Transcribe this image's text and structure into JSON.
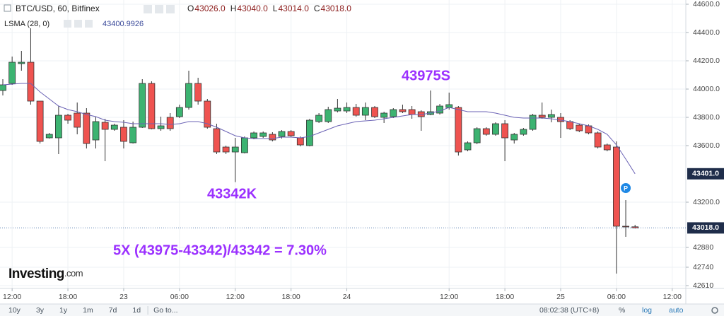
{
  "chart_data": {
    "type": "candlestick",
    "title": "BTC/USD, 60, Bitfinex",
    "header": {
      "ohlc": [
        {
          "label": "O",
          "value": "43026.0"
        },
        {
          "label": "H",
          "value": "43040.0"
        },
        {
          "label": "L",
          "value": "43014.0"
        },
        {
          "label": "C",
          "value": "43018.0"
        }
      ],
      "lsma_value": "43400.9926"
    },
    "categories": [
      null,
      "12:00",
      null,
      null,
      null,
      null,
      null,
      "18:00",
      null,
      null,
      null,
      null,
      null,
      "23",
      null,
      null,
      null,
      null,
      null,
      "06:00",
      null,
      null,
      null,
      null,
      null,
      "12:00",
      null,
      null,
      null,
      null,
      null,
      "18:00",
      null,
      null,
      null,
      null,
      null,
      "24",
      null,
      null,
      null,
      null,
      null,
      null,
      null,
      null,
      null,
      null,
      "12:00",
      null,
      null,
      null,
      null,
      null,
      "18:00",
      null,
      null,
      null,
      null,
      null,
      "25",
      null,
      null,
      null,
      null,
      null,
      "06:00",
      null,
      null,
      null,
      null,
      null,
      "12:00"
    ],
    "open": [
      43990,
      44040,
      44180,
      44190,
      43915,
      43655,
      43655,
      43815,
      43830,
      43830,
      43640,
      43765,
      43715,
      43730,
      43620,
      43730,
      44040,
      43720,
      43800,
      43805,
      43870,
      44040,
      43915,
      43720,
      43590,
      43555,
      43550,
      43655,
      43665,
      43680,
      43665,
      43700,
      43655,
      43600,
      43770,
      43770,
      43845,
      43845,
      43870,
      43815,
      43870,
      43800,
      43805,
      43855,
      43855,
      43840,
      43820,
      43830,
      43870,
      43870,
      43570,
      43620,
      43720,
      43680,
      43755,
      43640,
      43680,
      43715,
      43815,
      43800,
      43800,
      43770,
      43745,
      43740,
      43690,
      43605,
      43590,
      43030,
      43026,
      null,
      null,
      null,
      null
    ],
    "high": [
      44070,
      44230,
      44270,
      44430,
      43915,
      43690,
      43880,
      43825,
      43905,
      43865,
      43805,
      43790,
      43755,
      43780,
      43770,
      44070,
      44055,
      43805,
      43830,
      43890,
      44130,
      44080,
      43930,
      43755,
      43600,
      43655,
      43665,
      43700,
      43700,
      43695,
      43710,
      43710,
      43665,
      43790,
      43830,
      43875,
      43930,
      43905,
      43895,
      43905,
      43880,
      43840,
      43865,
      43890,
      43880,
      43850,
      43990,
      43895,
      43975,
      43880,
      43630,
      43730,
      43730,
      43765,
      43780,
      43690,
      43725,
      43825,
      43905,
      43855,
      43830,
      43780,
      43755,
      43750,
      43700,
      43615,
      43630,
      43215,
      43040,
      null,
      null,
      null,
      null
    ],
    "low": [
      43955,
      44030,
      44130,
      43890,
      43615,
      43650,
      43540,
      43755,
      43680,
      43580,
      43580,
      43490,
      43705,
      43580,
      43615,
      43725,
      43715,
      43705,
      43705,
      43795,
      43855,
      43890,
      43720,
      43540,
      43540,
      43342,
      43545,
      43645,
      43655,
      43630,
      43650,
      43660,
      43595,
      43595,
      43760,
      43760,
      43835,
      43830,
      43805,
      43780,
      43795,
      43760,
      43795,
      43830,
      43790,
      43705,
      43815,
      43820,
      43855,
      43530,
      43560,
      43610,
      43670,
      43670,
      43490,
      43615,
      43670,
      43705,
      43790,
      43765,
      43655,
      43710,
      43695,
      43680,
      43580,
      43560,
      42695,
      42955,
      43014,
      null,
      null,
      null,
      null
    ],
    "close": [
      44030,
      44190,
      44190,
      43915,
      43630,
      43680,
      43815,
      43780,
      43730,
      43615,
      43770,
      43715,
      43745,
      43630,
      43730,
      44040,
      43720,
      43740,
      43720,
      43870,
      44040,
      43915,
      43730,
      43555,
      43555,
      43590,
      43655,
      43690,
      43690,
      43640,
      43700,
      43670,
      43605,
      43780,
      43815,
      43855,
      43865,
      43870,
      43815,
      43870,
      43805,
      43830,
      43855,
      43840,
      43820,
      43805,
      43840,
      43880,
      43890,
      43555,
      43620,
      43720,
      43680,
      43755,
      43655,
      43680,
      43715,
      43815,
      43800,
      43820,
      43770,
      43720,
      43705,
      43690,
      43590,
      43570,
      43030,
      43026,
      43018,
      null,
      null,
      null,
      null
    ],
    "up_color": "#3cb371",
    "down_color": "#ef5350",
    "series": [
      {
        "name": "LSMA (28, 0)",
        "color": "#6b63b5",
        "values": [
          44030,
          44035,
          44040,
          44040,
          43980,
          43930,
          43880,
          43855,
          43840,
          43820,
          43805,
          43780,
          43770,
          43765,
          43755,
          43755,
          43755,
          43755,
          43750,
          43755,
          43770,
          43770,
          43755,
          43730,
          43700,
          43670,
          43655,
          43650,
          43650,
          43650,
          43660,
          43660,
          43655,
          43665,
          43690,
          43715,
          43740,
          43755,
          43770,
          43775,
          43780,
          43790,
          43800,
          43810,
          43820,
          43820,
          43830,
          43845,
          43870,
          43855,
          43840,
          43840,
          43840,
          43830,
          43815,
          43800,
          43795,
          43795,
          43795,
          43790,
          43780,
          43770,
          43755,
          43740,
          43715,
          43680,
          43605,
          43505,
          43401,
          null,
          null,
          null,
          null
        ]
      }
    ],
    "ylim": [
      42590,
      44630
    ],
    "yticks": [
      42610,
      42740,
      42880,
      {
        "value": 43200,
        "label": "43200.0"
      },
      {
        "value": 43600,
        "label": "43600.0"
      },
      {
        "value": 43800,
        "label": "43800.0"
      },
      {
        "value": 44000,
        "label": "44000.0"
      },
      {
        "value": 44200,
        "label": "44200.0"
      },
      {
        "value": 44400,
        "label": "44400.0"
      },
      {
        "value": 44600,
        "label": "44600.0"
      }
    ],
    "grid": true,
    "price_tags": [
      {
        "value": 43401,
        "label": "43401.0"
      },
      {
        "value": 43018,
        "label": "43018.0"
      }
    ],
    "marker": {
      "index": 67,
      "value": 43300,
      "label": "P"
    },
    "annotations": [
      "43975S",
      "43342K",
      "5X (43975-43342)/43342 = 7.30%"
    ]
  },
  "page": {
    "logo": [
      "Investing",
      ".com"
    ],
    "ranges": [
      "10y",
      "3y",
      "1y",
      "1m",
      "7d",
      "1d"
    ],
    "goto": "Go to...",
    "clock": "08:02:38 (UTC+8)",
    "scale_options": [
      "%",
      "log",
      "auto"
    ]
  }
}
